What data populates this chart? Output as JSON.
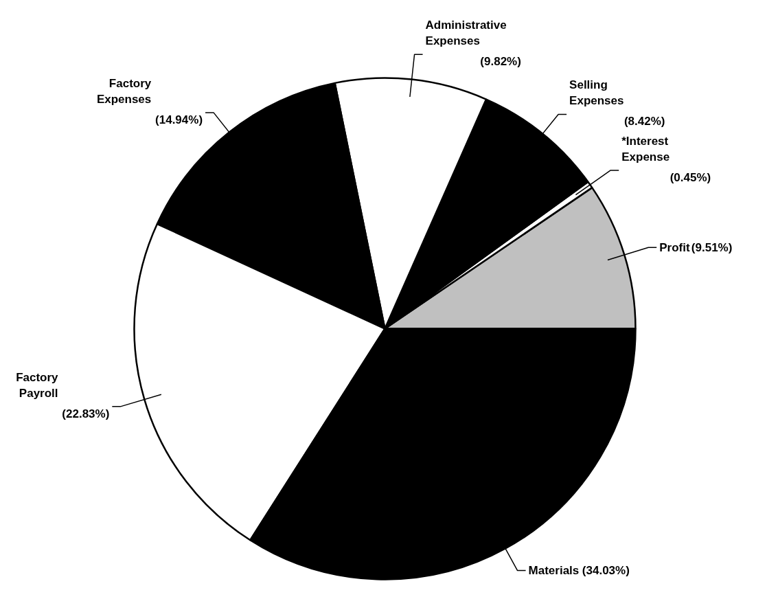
{
  "chart_data": {
    "type": "pie",
    "categories": [
      "Profit",
      "*Interest Expense",
      "Selling Expenses",
      "Administrative Expenses",
      "Factory Expenses",
      "Factory Payroll",
      "Materials"
    ],
    "values": [
      9.51,
      0.45,
      8.42,
      9.82,
      14.94,
      22.83,
      34.03
    ],
    "colors": [
      "#c0c0c0",
      "#ffffff",
      "#000000",
      "#ffffff",
      "#000000",
      "#ffffff",
      "#000000"
    ],
    "value_labels": [
      "(9.51%)",
      "(0.45%)",
      "(8.42%)",
      "(9.82%)",
      "(14.94%)",
      "(22.83%)",
      "(34.03%)"
    ],
    "legend": false
  }
}
